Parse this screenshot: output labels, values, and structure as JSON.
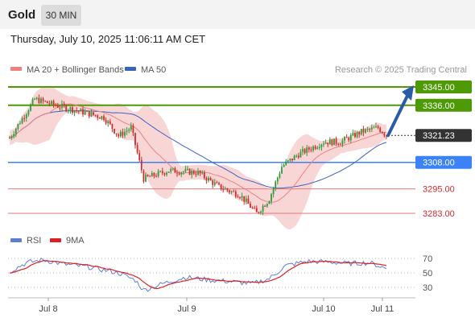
{
  "header": {
    "title": "Gold",
    "timeframe": "30 MIN",
    "timestamp": "Thursday, July 10, 2025 11:06:11 AM CET"
  },
  "legend": {
    "ma20": "MA 20 + Bollinger Bands",
    "ma50": "MA 50",
    "research": "Research © 2025 Trading Central",
    "rsi": "RSI",
    "ma9": "9MA"
  },
  "colors": {
    "bullish": "#2f9a3a",
    "bearish": "#d42a2a",
    "bollinger_band": "#f7c8c8",
    "ma20": "#f08080",
    "ma50": "#3b64c0",
    "resistance": "#4e9a06",
    "support": "#e07b7b",
    "pivot": "#3b82f6",
    "current": "#333333",
    "rsi": "#5b7fd6",
    "rsi_ma": "#e02020",
    "arrow": "#2a5aa8"
  },
  "chart_data": [
    {
      "type": "candlestick",
      "instrument": "Gold",
      "timeframe": "30 MIN",
      "x_tick_labels": [
        "Jul 8",
        "Jul 9",
        "Jul 10",
        "Jul 11"
      ],
      "ylim": [
        3280,
        3350
      ],
      "levels": [
        {
          "label": "3345.00",
          "value": 3345.0,
          "kind": "resistance"
        },
        {
          "label": "3336.00",
          "value": 3336.0,
          "kind": "resistance"
        },
        {
          "label": "3321.23",
          "value": 3321.23,
          "kind": "current"
        },
        {
          "label": "3308.00",
          "value": 3308.0,
          "kind": "pivot"
        },
        {
          "label": "3295.00",
          "value": 3295.0,
          "kind": "support"
        },
        {
          "label": "3283.00",
          "value": 3283.0,
          "kind": "support"
        }
      ],
      "forecast_target": 3345.0,
      "key_points": [
        {
          "t": 0,
          "price": 3320
        },
        {
          "t": 12,
          "price": 3339
        },
        {
          "t": 22,
          "price": 3336
        },
        {
          "t": 30,
          "price": 3334
        },
        {
          "t": 45,
          "price": 3330
        },
        {
          "t": 52,
          "price": 3321
        },
        {
          "t": 58,
          "price": 3325
        },
        {
          "t": 64,
          "price": 3300
        },
        {
          "t": 76,
          "price": 3304
        },
        {
          "t": 90,
          "price": 3303
        },
        {
          "t": 100,
          "price": 3296
        },
        {
          "t": 110,
          "price": 3292
        },
        {
          "t": 118,
          "price": 3283
        },
        {
          "t": 124,
          "price": 3290
        },
        {
          "t": 130,
          "price": 3306
        },
        {
          "t": 138,
          "price": 3312
        },
        {
          "t": 150,
          "price": 3318
        },
        {
          "t": 158,
          "price": 3318
        },
        {
          "t": 168,
          "price": 3323
        },
        {
          "t": 176,
          "price": 3325
        },
        {
          "t": 180,
          "price": 3321.23
        }
      ]
    },
    {
      "type": "line",
      "name": "RSI",
      "yticks": [
        30,
        50,
        70
      ],
      "ylim": [
        20,
        80
      ],
      "key_points": [
        {
          "t": 0,
          "value": 52
        },
        {
          "t": 8,
          "value": 64
        },
        {
          "t": 16,
          "value": 68
        },
        {
          "t": 26,
          "value": 62
        },
        {
          "t": 38,
          "value": 58
        },
        {
          "t": 52,
          "value": 50
        },
        {
          "t": 60,
          "value": 40
        },
        {
          "t": 64,
          "value": 26
        },
        {
          "t": 74,
          "value": 36
        },
        {
          "t": 84,
          "value": 44
        },
        {
          "t": 96,
          "value": 40
        },
        {
          "t": 106,
          "value": 38
        },
        {
          "t": 116,
          "value": 35
        },
        {
          "t": 124,
          "value": 42
        },
        {
          "t": 132,
          "value": 60
        },
        {
          "t": 142,
          "value": 66
        },
        {
          "t": 152,
          "value": 65
        },
        {
          "t": 162,
          "value": 63
        },
        {
          "t": 172,
          "value": 64
        },
        {
          "t": 180,
          "value": 56
        }
      ]
    }
  ]
}
